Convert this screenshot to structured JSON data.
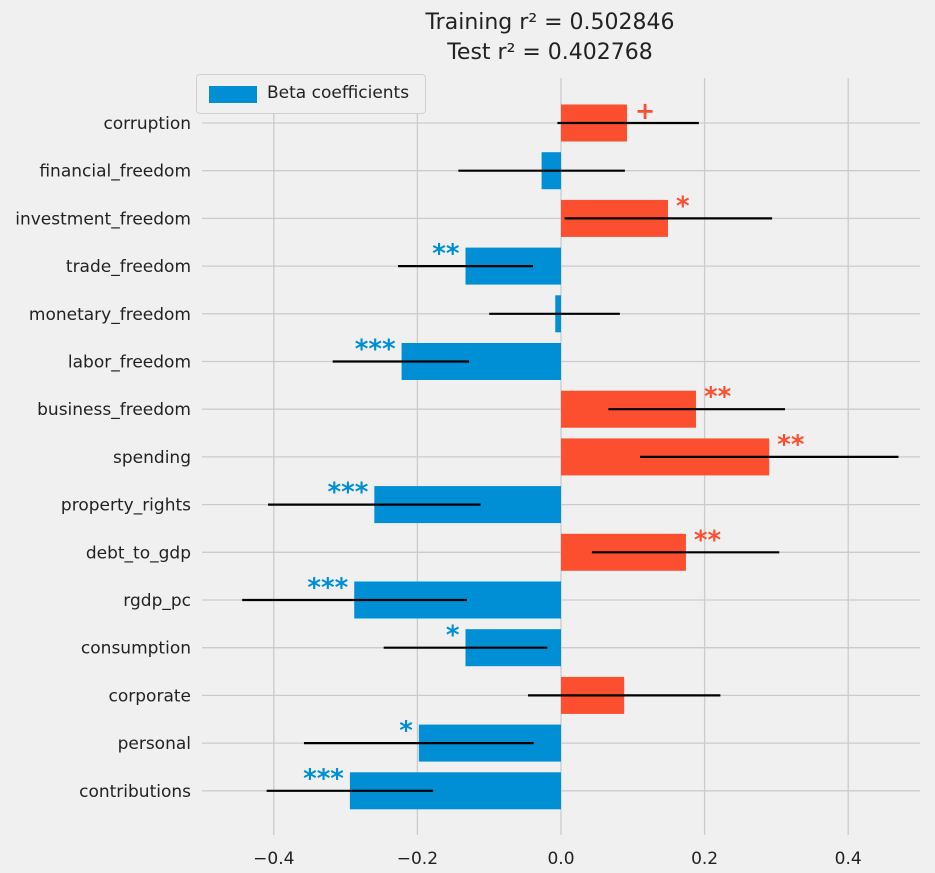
{
  "chart_data": {
    "type": "bar",
    "orientation": "horizontal",
    "title": [
      "Training r² = 0.502846",
      "Test r² = 0.402768"
    ],
    "legend": {
      "label": "Beta coefficients",
      "placement": "top-left"
    },
    "categories": [
      "corruption",
      "financial_freedom",
      "investment_freedom",
      "trade_freedom",
      "monetary_freedom",
      "labor_freedom",
      "business_freedom",
      "spending",
      "property_rights",
      "debt_to_gdp",
      "rgdp_pc",
      "consumption",
      "corporate",
      "personal",
      "contributions"
    ],
    "values": [
      0.092,
      -0.027,
      0.149,
      -0.133,
      -0.008,
      -0.222,
      0.188,
      0.29,
      -0.26,
      0.174,
      -0.288,
      -0.133,
      0.088,
      -0.198,
      -0.294
    ],
    "ci_low": [
      -0.005,
      -0.143,
      0.005,
      -0.227,
      -0.1,
      -0.318,
      0.066,
      0.11,
      -0.408,
      0.043,
      -0.444,
      -0.247,
      -0.046,
      -0.358,
      -0.41
    ],
    "ci_high": [
      0.192,
      0.089,
      0.294,
      -0.039,
      0.082,
      -0.128,
      0.312,
      0.47,
      -0.112,
      0.304,
      -0.131,
      -0.019,
      0.222,
      -0.038,
      -0.178
    ],
    "significance": [
      "+",
      "",
      "*",
      "**",
      "",
      "***",
      "**",
      "**",
      "***",
      "**",
      "***",
      "*",
      "",
      "*",
      "***"
    ],
    "xlim": [
      -0.5,
      0.5
    ],
    "xticks": [
      -0.4,
      -0.2,
      0.0,
      0.2,
      0.4
    ],
    "xtick_labels": [
      "−0.4",
      "−0.2",
      "0.0",
      "0.2",
      "0.4"
    ],
    "grid": true,
    "colors": {
      "positive": "#fc4f30",
      "negative": "#008fd5",
      "error_bar": "#000000",
      "grid": "#cbcbcb",
      "background": "#f0f0f0"
    }
  }
}
